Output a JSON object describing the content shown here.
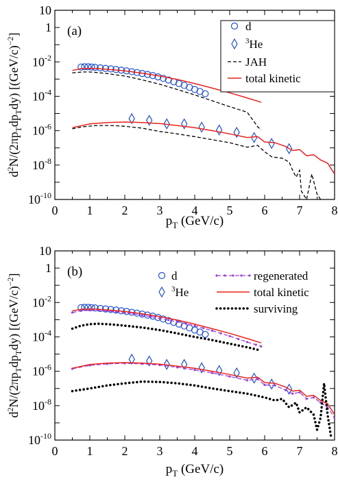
{
  "chart_data": [
    {
      "type": "scatter",
      "panel_label": "(a)",
      "xlabel_main": "p",
      "xlabel_sub": "T",
      "xlabel_rest": " (GeV/c)",
      "ylabel": "d²N/(2πp_T dp_T dy) [(GeV/c)⁻²]",
      "ylabel_parts": [
        "d",
        "2",
        "N/(2πp",
        "T",
        "dp",
        "T",
        "dy) [(GeV/c)",
        "−2",
        "]"
      ],
      "xlim": [
        0,
        8
      ],
      "ylim": [
        1e-10,
        10
      ],
      "yscale": "log",
      "x_ticks": [
        0,
        1,
        2,
        3,
        4,
        5,
        6,
        7,
        8
      ],
      "y_tick_labels": [
        {
          "value": 10,
          "base": "10",
          "exp": ""
        },
        {
          "value": 1,
          "base": "1",
          "exp": ""
        },
        {
          "value": 0.01,
          "base": "10",
          "exp": "-2"
        },
        {
          "value": 0.0001,
          "base": "10",
          "exp": "-4"
        },
        {
          "value": 1e-06,
          "base": "10",
          "exp": "-6"
        },
        {
          "value": 1e-08,
          "base": "10",
          "exp": "-8"
        },
        {
          "value": 1e-10,
          "base": "10",
          "exp": "-10"
        }
      ],
      "legend_position": "top-right",
      "series": [
        {
          "name": "d",
          "kind": "marker-circle",
          "color": "#1f4fd1",
          "x": [
            0.75,
            0.85,
            0.95,
            1.05,
            1.15,
            1.3,
            1.45,
            1.6,
            1.75,
            1.9,
            2.05,
            2.2,
            2.35,
            2.5,
            2.65,
            2.8,
            2.95,
            3.1,
            3.25,
            3.4,
            3.55,
            3.7,
            3.85,
            4.0,
            4.15,
            4.3
          ],
          "y": [
            0.005,
            0.0052,
            0.0052,
            0.005,
            0.0048,
            0.0045,
            0.0042,
            0.0039,
            0.0036,
            0.0033,
            0.003,
            0.0027,
            0.0024,
            0.0021,
            0.00185,
            0.0016,
            0.00135,
            0.0011,
            0.00088,
            0.0007,
            0.00055,
            0.00043,
            0.00033,
            0.00025,
            0.00019,
            0.00014
          ]
        },
        {
          "name": "³He",
          "name_sup": "3",
          "name_base": "He",
          "kind": "marker-diamond",
          "color": "#1f4fd1",
          "x": [
            2.2,
            2.7,
            3.2,
            3.7,
            4.2,
            4.7,
            5.2,
            5.7,
            6.2,
            6.7
          ],
          "y": [
            5e-06,
            4e-06,
            2.5e-06,
            2.5e-06,
            1.6e-06,
            1.1e-06,
            8e-07,
            4e-07,
            1.8e-07,
            9e-08
          ]
        },
        {
          "name": "JAH",
          "kind": "line-dashed",
          "color": "#000000",
          "x": [
            0.5,
            0.8,
            1.0,
            1.2,
            1.5,
            1.8,
            2.0,
            2.5,
            3.0,
            3.5,
            4.0,
            4.5,
            5.0,
            5.5,
            5.8,
            5.9
          ],
          "y": [
            0.0023,
            0.0026,
            0.0026,
            0.0024,
            0.0021,
            0.0017,
            0.0015,
            0.0009,
            0.0005,
            0.00025,
            0.00012,
            5.5e-05,
            2.5e-05,
            1.2e-05,
            1.7e-06,
            1.1e-06
          ]
        },
        {
          "name": "JAH (³He)",
          "kind": "line-dashed",
          "color": "#000000",
          "legend": false,
          "x": [
            0.5,
            0.8,
            1.2,
            1.6,
            2.0,
            2.5,
            3.0,
            3.5,
            4.0,
            4.5,
            5.0,
            5.5,
            5.8,
            6.0,
            6.2,
            6.5,
            6.7,
            6.8,
            6.9,
            7.0,
            7.05,
            7.2,
            7.35,
            7.5,
            7.6
          ],
          "y": [
            1.3e-06,
            1.7e-06,
            2e-06,
            2e-06,
            1.8e-06,
            1.4e-06,
            9e-07,
            6.5e-07,
            4.5e-07,
            3e-07,
            2e-07,
            1.1e-07,
            1.4e-07,
            6e-08,
            3e-08,
            2.5e-08,
            1.5e-08,
            5e-09,
            2e-09,
            5e-09,
            3e-10,
            1e-10,
            3e-09,
            2e-10,
            1e-10
          ]
        },
        {
          "name": "total kinetic",
          "kind": "line-solid",
          "color": "#e8221c",
          "x": [
            0.5,
            0.75,
            1.0,
            1.25,
            1.5,
            2.0,
            2.5,
            3.0,
            3.5,
            4.0,
            4.5,
            5.0,
            5.5,
            5.9
          ],
          "y": [
            0.0032,
            0.004,
            0.0042,
            0.004,
            0.0037,
            0.003,
            0.0022,
            0.0015,
            0.00095,
            0.00055,
            0.0003,
            0.00016,
            8e-05,
            4.5e-05
          ]
        },
        {
          "name": "total kinetic (³He)",
          "kind": "line-solid",
          "color": "#e8221c",
          "legend": false,
          "x": [
            0.5,
            1.0,
            1.5,
            2.0,
            2.5,
            3.0,
            3.5,
            4.0,
            4.5,
            5.0,
            5.5,
            5.8,
            6.0,
            6.3,
            6.6,
            6.8,
            7.0,
            7.2,
            7.4,
            7.6,
            7.8,
            8.0
          ],
          "y": [
            1.5e-06,
            2.5e-06,
            3e-06,
            3.2e-06,
            3e-06,
            2.6e-06,
            2e-06,
            1.5e-06,
            1e-06,
            6.5e-07,
            4e-07,
            4.5e-07,
            2.2e-07,
            2e-07,
            1.2e-07,
            7e-08,
            8e-08,
            3.5e-08,
            4e-08,
            2e-08,
            1.3e-08,
            3e-09
          ]
        }
      ]
    },
    {
      "type": "scatter",
      "panel_label": "(b)",
      "xlabel_main": "p",
      "xlabel_sub": "T",
      "xlabel_rest": " (GeV/c)",
      "ylabel": "d²N/(2πp_T dp_T dy) [(GeV/c)⁻²]",
      "ylabel_parts": [
        "d",
        "2",
        "N/(2πp",
        "T",
        "dp",
        "T",
        "dy) [(GeV/c)",
        "−2",
        "]"
      ],
      "xlim": [
        0,
        8
      ],
      "ylim": [
        1e-10,
        10
      ],
      "yscale": "log",
      "x_ticks": [
        0,
        1,
        2,
        3,
        4,
        5,
        6,
        7,
        8
      ],
      "y_tick_labels": [
        {
          "value": 10,
          "base": "10",
          "exp": ""
        },
        {
          "value": 1,
          "base": "1",
          "exp": ""
        },
        {
          "value": 0.01,
          "base": "10",
          "exp": "-2"
        },
        {
          "value": 0.0001,
          "base": "10",
          "exp": "-4"
        },
        {
          "value": 1e-06,
          "base": "10",
          "exp": "-6"
        },
        {
          "value": 1e-08,
          "base": "10",
          "exp": "-8"
        },
        {
          "value": 1e-10,
          "base": "10",
          "exp": "-10"
        }
      ],
      "legend_position": "top-right",
      "series": [
        {
          "name": "d",
          "kind": "marker-circle",
          "color": "#1f4fd1",
          "x": [
            0.75,
            0.85,
            0.95,
            1.05,
            1.15,
            1.3,
            1.45,
            1.6,
            1.75,
            1.9,
            2.05,
            2.2,
            2.35,
            2.5,
            2.65,
            2.8,
            2.95,
            3.1,
            3.25,
            3.4,
            3.55,
            3.7,
            3.85,
            4.0,
            4.15,
            4.3
          ],
          "y": [
            0.005,
            0.0052,
            0.0052,
            0.005,
            0.0048,
            0.0045,
            0.0042,
            0.0039,
            0.0036,
            0.0033,
            0.003,
            0.0027,
            0.0024,
            0.0021,
            0.00185,
            0.0016,
            0.00135,
            0.0011,
            0.00088,
            0.0007,
            0.00055,
            0.00043,
            0.00033,
            0.00025,
            0.00019,
            0.00014
          ]
        },
        {
          "name": "³He",
          "name_sup": "3",
          "name_base": "He",
          "kind": "marker-diamond",
          "color": "#1f4fd1",
          "x": [
            2.2,
            2.7,
            3.2,
            3.7,
            4.2,
            4.7,
            5.2,
            5.7,
            6.2,
            6.7
          ],
          "y": [
            5e-06,
            4e-06,
            2.5e-06,
            2.5e-06,
            1.6e-06,
            1.1e-06,
            8e-07,
            4e-07,
            1.8e-07,
            9e-08
          ]
        },
        {
          "name": "regenerated",
          "kind": "line-dotted-marker",
          "color": "#9b3fd6",
          "x": [
            0.5,
            0.75,
            1.0,
            1.25,
            1.5,
            1.75,
            2.0,
            2.25,
            2.5,
            2.75,
            3.0,
            3.25,
            3.5,
            3.75,
            4.0,
            4.25,
            4.5,
            4.75,
            5.0,
            5.25,
            5.5,
            5.75,
            5.9
          ],
          "y": [
            0.0026,
            0.0033,
            0.0035,
            0.0034,
            0.0032,
            0.0029,
            0.0026,
            0.0022,
            0.0018,
            0.0015,
            0.0012,
            0.00095,
            0.00075,
            0.00058,
            0.00044,
            0.00032,
            0.00023,
            0.00016,
            0.00011,
            7.5e-05,
            5e-05,
            3.5e-05,
            2.8e-05
          ]
        },
        {
          "name": "regenerated (³He)",
          "kind": "line-dotted-marker",
          "color": "#9b3fd6",
          "legend": false,
          "x": [
            0.5,
            1.0,
            1.5,
            2.0,
            2.5,
            3.0,
            3.5,
            4.0,
            4.5,
            5.0,
            5.5,
            5.8,
            6.0,
            6.3,
            6.6,
            6.8,
            7.0,
            7.2,
            7.4,
            7.6,
            7.8,
            8.0
          ],
          "y": [
            1.4e-06,
            2.2e-06,
            2.7e-06,
            2.9e-06,
            2.7e-06,
            2.3e-06,
            1.7e-06,
            1.2e-06,
            8e-07,
            5e-07,
            3e-07,
            3.5e-07,
            1.6e-07,
            1.5e-07,
            8e-08,
            5e-08,
            6e-08,
            2.5e-08,
            3e-08,
            1.5e-08,
            8e-09,
            2e-09
          ]
        },
        {
          "name": "total kinetic",
          "kind": "line-solid",
          "color": "#e8221c",
          "x": [
            0.5,
            0.75,
            1.0,
            1.25,
            1.5,
            2.0,
            2.5,
            3.0,
            3.5,
            4.0,
            4.5,
            5.0,
            5.5,
            5.9
          ],
          "y": [
            0.0032,
            0.004,
            0.0042,
            0.004,
            0.0037,
            0.003,
            0.0022,
            0.0015,
            0.00095,
            0.00055,
            0.0003,
            0.00016,
            8e-05,
            4.5e-05
          ]
        },
        {
          "name": "total kinetic (³He)",
          "kind": "line-solid",
          "color": "#e8221c",
          "legend": false,
          "x": [
            0.5,
            1.0,
            1.5,
            2.0,
            2.5,
            3.0,
            3.5,
            4.0,
            4.5,
            5.0,
            5.5,
            5.8,
            6.0,
            6.3,
            6.6,
            6.8,
            7.0,
            7.2,
            7.4,
            7.6,
            7.8,
            8.0
          ],
          "y": [
            1.5e-06,
            2.5e-06,
            3e-06,
            3.2e-06,
            3e-06,
            2.6e-06,
            2e-06,
            1.5e-06,
            1e-06,
            6.5e-07,
            4e-07,
            4.5e-07,
            2.2e-07,
            2e-07,
            1.2e-07,
            7e-08,
            8e-08,
            3.5e-08,
            4e-08,
            2e-08,
            1.3e-08,
            3e-09
          ]
        },
        {
          "name": "surviving",
          "kind": "line-dotted",
          "color": "#000000",
          "x": [
            0.5,
            0.75,
            1.0,
            1.25,
            1.5,
            1.75,
            2.0,
            2.5,
            3.0,
            3.5,
            4.0,
            4.5,
            5.0,
            5.5,
            5.9
          ],
          "y": [
            0.0003,
            0.00045,
            0.00055,
            0.00058,
            0.00055,
            0.0005,
            0.00045,
            0.00035,
            0.00025,
            0.00016,
            0.0001,
            6.5e-05,
            4e-05,
            2.5e-05,
            1.6e-05
          ]
        },
        {
          "name": "surviving (³He)",
          "kind": "line-dotted",
          "color": "#000000",
          "legend": false,
          "x": [
            0.5,
            1.0,
            1.5,
            2.0,
            2.5,
            3.0,
            3.5,
            4.0,
            4.5,
            5.0,
            5.5,
            6.0,
            6.3,
            6.5,
            6.7,
            6.9,
            7.0,
            7.2,
            7.4,
            7.5,
            7.6,
            7.7,
            7.8,
            7.9
          ],
          "y": [
            7e-08,
            1e-07,
            1.5e-07,
            2e-07,
            2.5e-07,
            2.4e-07,
            2e-07,
            1.5e-07,
            1e-07,
            7e-08,
            5e-08,
            3e-08,
            2e-08,
            2.5e-08,
            8e-09,
            1.5e-08,
            4e-09,
            8e-09,
            3e-09,
            4e-10,
            2e-09,
            2e-07,
            3e-09,
            1.5e-10
          ]
        }
      ]
    }
  ]
}
